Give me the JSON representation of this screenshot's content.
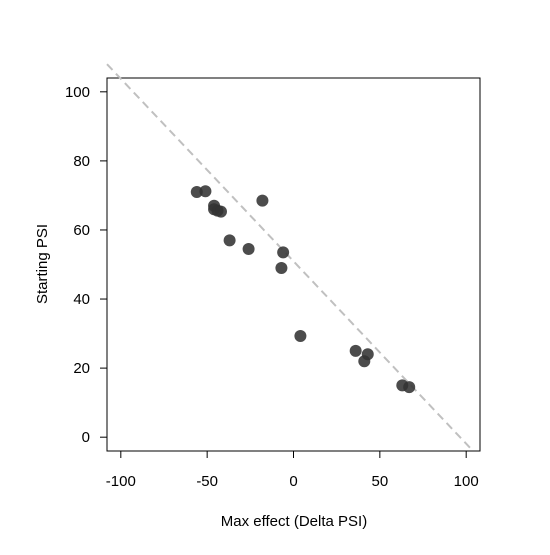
{
  "chart_data": {
    "type": "scatter",
    "title": "",
    "xlabel": "Max effect (Delta PSI)",
    "ylabel": "Starting PSI",
    "xlim": [
      -108,
      108
    ],
    "ylim": [
      -4,
      104
    ],
    "x_ticks": [
      -100,
      -50,
      0,
      50,
      100
    ],
    "y_ticks": [
      0,
      20,
      40,
      60,
      80,
      100
    ],
    "x_tick_labels": [
      "-100",
      "-50",
      "0",
      "50",
      "100"
    ],
    "y_tick_labels": [
      "0",
      "20",
      "40",
      "60",
      "80",
      "100"
    ],
    "grid": false,
    "legend": null,
    "point_color": "#333333",
    "reference_line": {
      "style": "dashed",
      "color": "#c0c0c0",
      "from": [
        -108,
        108
      ],
      "to": [
        104,
        -4
      ]
    },
    "points": [
      {
        "x": -56,
        "y": 71
      },
      {
        "x": -51,
        "y": 71.2
      },
      {
        "x": -46,
        "y": 67
      },
      {
        "x": -46,
        "y": 66
      },
      {
        "x": -44,
        "y": 65.6
      },
      {
        "x": -42,
        "y": 65.3
      },
      {
        "x": -18,
        "y": 68.5
      },
      {
        "x": -37,
        "y": 57
      },
      {
        "x": -26,
        "y": 54.5
      },
      {
        "x": -6,
        "y": 53.5
      },
      {
        "x": -7,
        "y": 49
      },
      {
        "x": 4,
        "y": 29.3
      },
      {
        "x": 36,
        "y": 25
      },
      {
        "x": 43,
        "y": 24
      },
      {
        "x": 41,
        "y": 22
      },
      {
        "x": 63,
        "y": 15
      },
      {
        "x": 67,
        "y": 14.5
      }
    ]
  }
}
